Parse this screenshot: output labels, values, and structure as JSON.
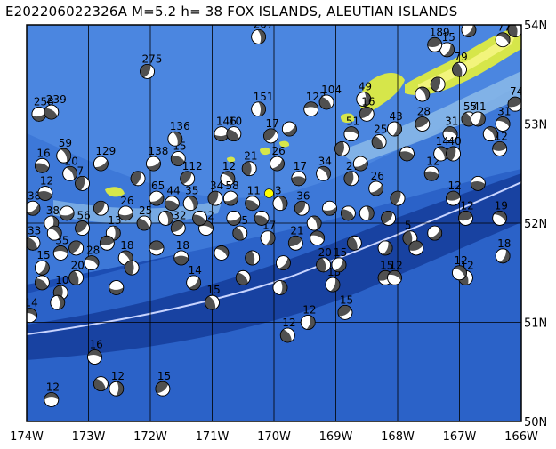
{
  "header": {
    "title": "E202206022326A  M=5.2  h= 38  FOX ISLANDS, ALEUTIAN ISLANDS"
  },
  "map": {
    "lon_range": [
      -174,
      -166
    ],
    "lat_range": [
      50,
      54
    ],
    "lon_labels": [
      "174W",
      "173W",
      "172W",
      "171W",
      "170W",
      "169W",
      "168W",
      "167W",
      "166W"
    ],
    "lat_labels": [
      "50N",
      "51N",
      "52N",
      "53N",
      "54N"
    ],
    "colors": {
      "deep_ocean": "#1a4fb0",
      "mid_ocean": "#2f6fd0",
      "shelf": "#6fa4e0",
      "land": "#d8e84a",
      "land_highlight": "#f4f68a",
      "trench_line": "#c8d4ff",
      "grid": "#000000"
    },
    "featured_event": {
      "lon": -170.08,
      "lat": 52.3,
      "color": "#ffff00"
    },
    "mechanisms": [
      {
        "lon": -173.6,
        "lat": 50.22,
        "depth": "12"
      },
      {
        "lon": -172.8,
        "lat": 50.38,
        "depth": ""
      },
      {
        "lon": -172.55,
        "lat": 50.33,
        "depth": "12"
      },
      {
        "lon": -171.8,
        "lat": 50.33,
        "depth": "15"
      },
      {
        "lon": -172.9,
        "lat": 50.65,
        "depth": "16"
      },
      {
        "lon": -169.78,
        "lat": 50.87,
        "depth": "12"
      },
      {
        "lon": -169.45,
        "lat": 51.0,
        "depth": "12"
      },
      {
        "lon": -168.85,
        "lat": 51.1,
        "depth": "15"
      },
      {
        "lon": -173.95,
        "lat": 51.07,
        "depth": "14"
      },
      {
        "lon": -171.0,
        "lat": 51.2,
        "depth": "15"
      },
      {
        "lon": -169.05,
        "lat": 51.38,
        "depth": "15"
      },
      {
        "lon": -168.2,
        "lat": 51.45,
        "depth": "15"
      },
      {
        "lon": -168.05,
        "lat": 51.45,
        "depth": "12"
      },
      {
        "lon": -166.9,
        "lat": 51.45,
        "depth": "12"
      },
      {
        "lon": -166.3,
        "lat": 51.67,
        "depth": "18"
      },
      {
        "lon": -166.9,
        "lat": 52.05,
        "depth": "12"
      },
      {
        "lon": -166.35,
        "lat": 52.05,
        "depth": "19"
      },
      {
        "lon": -169.2,
        "lat": 51.58,
        "depth": "20"
      },
      {
        "lon": -168.95,
        "lat": 51.58,
        "depth": "15"
      },
      {
        "lon": -167.1,
        "lat": 52.25,
        "depth": "12"
      },
      {
        "lon": -167.0,
        "lat": 51.5,
        "depth": "12"
      },
      {
        "lon": -167.8,
        "lat": 51.85,
        "depth": "5"
      },
      {
        "lon": -171.3,
        "lat": 51.4,
        "depth": "14"
      },
      {
        "lon": -171.5,
        "lat": 51.65,
        "depth": "18"
      },
      {
        "lon": -172.4,
        "lat": 51.65,
        "depth": "18"
      },
      {
        "lon": -173.45,
        "lat": 51.3,
        "depth": "10"
      },
      {
        "lon": -173.9,
        "lat": 52.15,
        "depth": "38"
      },
      {
        "lon": -173.7,
        "lat": 52.3,
        "depth": "12"
      },
      {
        "lon": -173.3,
        "lat": 52.5,
        "depth": "20"
      },
      {
        "lon": -173.1,
        "lat": 52.4,
        "depth": "7"
      },
      {
        "lon": -172.8,
        "lat": 52.6,
        "depth": "129"
      },
      {
        "lon": -173.75,
        "lat": 52.58,
        "depth": "16"
      },
      {
        "lon": -173.4,
        "lat": 52.68,
        "depth": "59"
      },
      {
        "lon": -172.2,
        "lat": 52.45,
        "depth": ""
      },
      {
        "lon": -171.95,
        "lat": 52.6,
        "depth": "138"
      },
      {
        "lon": -171.55,
        "lat": 52.65,
        "depth": "15"
      },
      {
        "lon": -171.6,
        "lat": 52.85,
        "depth": "136"
      },
      {
        "lon": -172.05,
        "lat": 53.53,
        "depth": "275"
      },
      {
        "lon": -173.8,
        "lat": 53.1,
        "depth": "258"
      },
      {
        "lon": -173.6,
        "lat": 53.12,
        "depth": "239"
      },
      {
        "lon": -170.25,
        "lat": 53.88,
        "depth": "207"
      },
      {
        "lon": -171.4,
        "lat": 52.45,
        "depth": "112"
      },
      {
        "lon": -170.85,
        "lat": 52.9,
        "depth": "146"
      },
      {
        "lon": -170.65,
        "lat": 52.9,
        "depth": "10"
      },
      {
        "lon": -170.25,
        "lat": 53.15,
        "depth": "151"
      },
      {
        "lon": -170.05,
        "lat": 52.88,
        "depth": "17"
      },
      {
        "lon": -169.4,
        "lat": 53.15,
        "depth": "123"
      },
      {
        "lon": -169.15,
        "lat": 53.22,
        "depth": "104"
      },
      {
        "lon": -168.55,
        "lat": 53.25,
        "depth": "49"
      },
      {
        "lon": -168.5,
        "lat": 53.1,
        "depth": "16"
      },
      {
        "lon": -168.75,
        "lat": 52.9,
        "depth": "51"
      },
      {
        "lon": -168.3,
        "lat": 52.82,
        "depth": "25"
      },
      {
        "lon": -168.05,
        "lat": 52.95,
        "depth": "43"
      },
      {
        "lon": -167.6,
        "lat": 53.0,
        "depth": "28"
      },
      {
        "lon": -167.15,
        "lat": 52.9,
        "depth": "31"
      },
      {
        "lon": -166.85,
        "lat": 53.05,
        "depth": "55"
      },
      {
        "lon": -166.7,
        "lat": 53.05,
        "depth": "41"
      },
      {
        "lon": -166.1,
        "lat": 53.2,
        "depth": "74"
      },
      {
        "lon": -166.3,
        "lat": 53.0,
        "depth": "31"
      },
      {
        "lon": -167.0,
        "lat": 53.55,
        "depth": "79"
      },
      {
        "lon": -167.2,
        "lat": 53.75,
        "depth": "15"
      },
      {
        "lon": -167.4,
        "lat": 53.8,
        "depth": "189"
      },
      {
        "lon": -166.3,
        "lat": 53.85,
        "depth": "77"
      },
      {
        "lon": -166.1,
        "lat": 53.95,
        "depth": "32"
      },
      {
        "lon": -166.85,
        "lat": 53.95,
        "depth": "15"
      },
      {
        "lon": -166.35,
        "lat": 52.75,
        "depth": "12"
      },
      {
        "lon": -170.75,
        "lat": 52.45,
        "depth": "12"
      },
      {
        "lon": -170.4,
        "lat": 52.55,
        "depth": "21"
      },
      {
        "lon": -169.95,
        "lat": 52.6,
        "depth": "26"
      },
      {
        "lon": -169.6,
        "lat": 52.45,
        "depth": "17"
      },
      {
        "lon": -169.2,
        "lat": 52.5,
        "depth": "34"
      },
      {
        "lon": -168.75,
        "lat": 52.45,
        "depth": "27"
      },
      {
        "lon": -168.35,
        "lat": 52.35,
        "depth": "26"
      },
      {
        "lon": -167.45,
        "lat": 52.5,
        "depth": "12"
      },
      {
        "lon": -167.3,
        "lat": 52.7,
        "depth": "14"
      },
      {
        "lon": -167.1,
        "lat": 52.7,
        "depth": "40"
      },
      {
        "lon": -171.9,
        "lat": 52.25,
        "depth": "65"
      },
      {
        "lon": -171.65,
        "lat": 52.2,
        "depth": "44"
      },
      {
        "lon": -171.35,
        "lat": 52.2,
        "depth": "35"
      },
      {
        "lon": -170.95,
        "lat": 52.25,
        "depth": "34"
      },
      {
        "lon": -170.7,
        "lat": 52.25,
        "depth": "58"
      },
      {
        "lon": -170.35,
        "lat": 52.2,
        "depth": "11"
      },
      {
        "lon": -169.9,
        "lat": 52.2,
        "depth": "3"
      },
      {
        "lon": -169.55,
        "lat": 52.15,
        "depth": "36"
      },
      {
        "lon": -169.1,
        "lat": 52.15,
        "depth": ""
      },
      {
        "lon": -168.8,
        "lat": 52.1,
        "depth": ""
      },
      {
        "lon": -168.5,
        "lat": 52.1,
        "depth": ""
      },
      {
        "lon": -168.15,
        "lat": 52.05,
        "depth": ""
      },
      {
        "lon": -172.4,
        "lat": 52.1,
        "depth": "26"
      },
      {
        "lon": -172.1,
        "lat": 52.0,
        "depth": "25"
      },
      {
        "lon": -172.6,
        "lat": 51.9,
        "depth": "13"
      },
      {
        "lon": -173.1,
        "lat": 51.95,
        "depth": "56"
      },
      {
        "lon": -173.45,
        "lat": 51.7,
        "depth": "35"
      },
      {
        "lon": -173.9,
        "lat": 51.8,
        "depth": "33"
      },
      {
        "lon": -173.6,
        "lat": 52.0,
        "depth": "38"
      },
      {
        "lon": -171.55,
        "lat": 51.95,
        "depth": "32"
      },
      {
        "lon": -171.1,
        "lat": 51.95,
        "depth": "42"
      },
      {
        "lon": -170.55,
        "lat": 51.9,
        "depth": "55"
      },
      {
        "lon": -170.1,
        "lat": 51.85,
        "depth": "17"
      },
      {
        "lon": -169.65,
        "lat": 51.8,
        "depth": "21"
      },
      {
        "lon": -169.3,
        "lat": 51.85,
        "depth": ""
      },
      {
        "lon": -168.7,
        "lat": 51.8,
        "depth": ""
      },
      {
        "lon": -168.2,
        "lat": 51.75,
        "depth": ""
      },
      {
        "lon": -167.7,
        "lat": 51.75,
        "depth": ""
      },
      {
        "lon": -172.95,
        "lat": 51.6,
        "depth": "28"
      },
      {
        "lon": -173.2,
        "lat": 51.45,
        "depth": "20"
      },
      {
        "lon": -173.75,
        "lat": 51.55,
        "depth": "15"
      },
      {
        "lon": -172.7,
        "lat": 51.8,
        "depth": ""
      },
      {
        "lon": -170.85,
        "lat": 51.7,
        "depth": ""
      },
      {
        "lon": -170.35,
        "lat": 51.65,
        "depth": ""
      },
      {
        "lon": -169.85,
        "lat": 51.6,
        "depth": ""
      },
      {
        "lon": -171.9,
        "lat": 51.75,
        "depth": ""
      },
      {
        "lon": -173.55,
        "lat": 51.9,
        "depth": ""
      },
      {
        "lon": -172.3,
        "lat": 51.55,
        "depth": ""
      },
      {
        "lon": -167.4,
        "lat": 51.9,
        "depth": ""
      },
      {
        "lon": -166.7,
        "lat": 52.4,
        "depth": ""
      },
      {
        "lon": -166.5,
        "lat": 52.9,
        "depth": ""
      },
      {
        "lon": -168.9,
        "lat": 52.75,
        "depth": ""
      },
      {
        "lon": -169.75,
        "lat": 52.95,
        "depth": ""
      },
      {
        "lon": -167.85,
        "lat": 52.7,
        "depth": ""
      },
      {
        "lon": -167.6,
        "lat": 53.3,
        "depth": ""
      },
      {
        "lon": -167.35,
        "lat": 53.4,
        "depth": ""
      },
      {
        "lon": -168.6,
        "lat": 52.6,
        "depth": ""
      },
      {
        "lon": -170.2,
        "lat": 52.05,
        "depth": ""
      },
      {
        "lon": -169.35,
        "lat": 52.0,
        "depth": ""
      },
      {
        "lon": -168.0,
        "lat": 52.25,
        "depth": ""
      },
      {
        "lon": -170.65,
        "lat": 52.05,
        "depth": ""
      },
      {
        "lon": -171.2,
        "lat": 52.05,
        "depth": ""
      },
      {
        "lon": -171.75,
        "lat": 52.05,
        "depth": ""
      },
      {
        "lon": -172.8,
        "lat": 52.15,
        "depth": ""
      },
      {
        "lon": -173.35,
        "lat": 52.1,
        "depth": ""
      },
      {
        "lon": -173.75,
        "lat": 51.4,
        "depth": ""
      },
      {
        "lon": -173.5,
        "lat": 51.2,
        "depth": ""
      },
      {
        "lon": -173.2,
        "lat": 51.75,
        "depth": ""
      },
      {
        "lon": -172.55,
        "lat": 51.35,
        "depth": ""
      },
      {
        "lon": -170.5,
        "lat": 51.45,
        "depth": ""
      },
      {
        "lon": -169.9,
        "lat": 51.35,
        "depth": ""
      }
    ]
  }
}
